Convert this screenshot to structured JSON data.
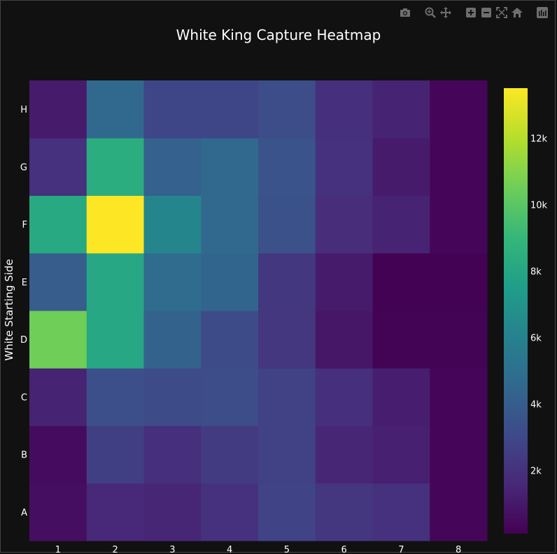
{
  "modebar": {
    "icons": [
      "camera-icon",
      "zoom-icon",
      "pan-icon",
      "zoom-in-icon",
      "zoom-out-icon",
      "autoscale-icon",
      "home-icon",
      "plotly-logo-icon"
    ]
  },
  "colors": {
    "background": "#111111",
    "colorscale": "Viridis"
  },
  "chart_data": {
    "type": "heatmap",
    "title": "White King Capture Heatmap",
    "xlabel": "",
    "ylabel": "White Starting Side",
    "x": [
      "1",
      "2",
      "3",
      "4",
      "5",
      "6",
      "7",
      "8"
    ],
    "y": [
      "A",
      "B",
      "C",
      "D",
      "E",
      "F",
      "G",
      "H"
    ],
    "z": [
      [
        600,
        1600,
        1500,
        2000,
        2800,
        2200,
        2000,
        300
      ],
      [
        500,
        2600,
        1900,
        2400,
        2700,
        1500,
        1300,
        300
      ],
      [
        1400,
        3300,
        3100,
        3200,
        2700,
        1900,
        1200,
        300
      ],
      [
        10500,
        8100,
        4300,
        3100,
        2200,
        900,
        200,
        200
      ],
      [
        4000,
        8100,
        4800,
        4400,
        2300,
        1100,
        150,
        150
      ],
      [
        8200,
        13500,
        6200,
        4600,
        3400,
        1800,
        1400,
        300
      ],
      [
        2000,
        8400,
        4200,
        4600,
        3500,
        2000,
        1100,
        300
      ],
      [
        1100,
        4600,
        2900,
        2900,
        3200,
        1900,
        1400,
        300
      ]
    ],
    "zmin": 100,
    "zmax": 13500,
    "colorbar_ticks": [
      2000,
      4000,
      6000,
      8000,
      10000,
      12000
    ],
    "colorbar_ticklabels": [
      "2k",
      "4k",
      "6k",
      "8k",
      "10k",
      "12k"
    ],
    "grid": false
  }
}
